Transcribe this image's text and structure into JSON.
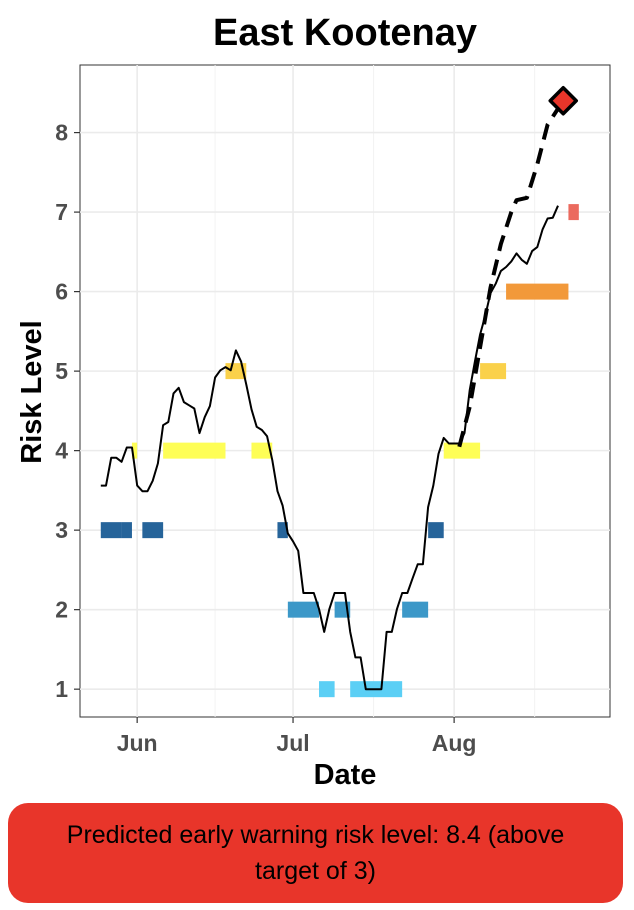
{
  "banner": {
    "text": "Predicted early warning risk level: 8.4 (above target of 3)",
    "color": "#e8352a"
  },
  "chart_data": {
    "type": "line",
    "title": "East Kootenay",
    "xlabel": "Date",
    "ylabel": "Risk Level",
    "xlim": [
      "2024-05-21",
      "2024-08-31"
    ],
    "ylim": [
      0.65,
      8.85
    ],
    "grid": true,
    "legend": "none",
    "x_ticks": [
      {
        "label": "Jun",
        "date": "2024-06-01"
      },
      {
        "label": "Jul",
        "date": "2024-07-01"
      },
      {
        "label": "Aug",
        "date": "2024-08-01"
      }
    ],
    "y_ticks": [
      1,
      2,
      3,
      4,
      5,
      6,
      7,
      8
    ],
    "series": [
      {
        "style": "solid",
        "color": "#000000",
        "points": [
          [
            "2024-05-25",
            3.56
          ],
          [
            "2024-05-26",
            3.56
          ],
          [
            "2024-05-27",
            3.91
          ],
          [
            "2024-05-28",
            3.91
          ],
          [
            "2024-05-29",
            3.86
          ],
          [
            "2024-05-30",
            4.04
          ],
          [
            "2024-05-31",
            4.04
          ],
          [
            "2024-06-01",
            3.56
          ],
          [
            "2024-06-02",
            3.49
          ],
          [
            "2024-06-03",
            3.49
          ],
          [
            "2024-06-04",
            3.62
          ],
          [
            "2024-06-05",
            3.84
          ],
          [
            "2024-06-06",
            4.32
          ],
          [
            "2024-06-07",
            4.36
          ],
          [
            "2024-06-08",
            4.72
          ],
          [
            "2024-06-09",
            4.79
          ],
          [
            "2024-06-10",
            4.61
          ],
          [
            "2024-06-11",
            4.57
          ],
          [
            "2024-06-12",
            4.53
          ],
          [
            "2024-06-13",
            4.22
          ],
          [
            "2024-06-14",
            4.42
          ],
          [
            "2024-06-15",
            4.56
          ],
          [
            "2024-06-16",
            4.92
          ],
          [
            "2024-06-17",
            5.01
          ],
          [
            "2024-06-18",
            5.05
          ],
          [
            "2024-06-19",
            5.01
          ],
          [
            "2024-06-20",
            5.26
          ],
          [
            "2024-06-21",
            5.12
          ],
          [
            "2024-06-22",
            4.83
          ],
          [
            "2024-06-23",
            4.52
          ],
          [
            "2024-06-24",
            4.3
          ],
          [
            "2024-06-25",
            4.26
          ],
          [
            "2024-06-26",
            4.18
          ],
          [
            "2024-06-27",
            3.88
          ],
          [
            "2024-06-28",
            3.49
          ],
          [
            "2024-06-29",
            3.31
          ],
          [
            "2024-06-30",
            2.96
          ],
          [
            "2024-07-01",
            2.86
          ],
          [
            "2024-07-02",
            2.74
          ],
          [
            "2024-07-03",
            2.21
          ],
          [
            "2024-07-04",
            2.21
          ],
          [
            "2024-07-05",
            2.21
          ],
          [
            "2024-07-06",
            2.01
          ],
          [
            "2024-07-07",
            1.72
          ],
          [
            "2024-07-08",
            2.01
          ],
          [
            "2024-07-09",
            2.21
          ],
          [
            "2024-07-10",
            2.21
          ],
          [
            "2024-07-11",
            2.21
          ],
          [
            "2024-07-12",
            1.72
          ],
          [
            "2024-07-13",
            1.4
          ],
          [
            "2024-07-14",
            1.4
          ],
          [
            "2024-07-15",
            1.0
          ],
          [
            "2024-07-16",
            1.0
          ],
          [
            "2024-07-17",
            1.0
          ],
          [
            "2024-07-18",
            1.0
          ],
          [
            "2024-07-19",
            1.72
          ],
          [
            "2024-07-20",
            1.72
          ],
          [
            "2024-07-21",
            2.01
          ],
          [
            "2024-07-22",
            2.21
          ],
          [
            "2024-07-23",
            2.21
          ],
          [
            "2024-07-24",
            2.39
          ],
          [
            "2024-07-25",
            2.57
          ],
          [
            "2024-07-26",
            2.57
          ],
          [
            "2024-07-27",
            3.29
          ],
          [
            "2024-07-28",
            3.56
          ],
          [
            "2024-07-29",
            3.96
          ],
          [
            "2024-07-30",
            4.16
          ],
          [
            "2024-07-31",
            4.09
          ],
          [
            "2024-08-01",
            4.09
          ],
          [
            "2024-08-02",
            4.09
          ],
          [
            "2024-08-03",
            4.22
          ],
          [
            "2024-08-04",
            4.76
          ],
          [
            "2024-08-05",
            5.12
          ],
          [
            "2024-08-06",
            5.46
          ],
          [
            "2024-08-07",
            5.7
          ],
          [
            "2024-08-08",
            5.98
          ],
          [
            "2024-08-09",
            6.1
          ],
          [
            "2024-08-10",
            6.26
          ],
          [
            "2024-08-11",
            6.31
          ],
          [
            "2024-08-12",
            6.38
          ],
          [
            "2024-08-13",
            6.48
          ],
          [
            "2024-08-14",
            6.4
          ],
          [
            "2024-08-15",
            6.35
          ],
          [
            "2024-08-16",
            6.51
          ],
          [
            "2024-08-17",
            6.56
          ],
          [
            "2024-08-18",
            6.78
          ],
          [
            "2024-08-19",
            6.92
          ],
          [
            "2024-08-20",
            6.93
          ],
          [
            "2024-08-21",
            7.08
          ]
        ]
      },
      {
        "style": "dashed",
        "color": "#000000",
        "points": [
          [
            "2024-08-02",
            4.05
          ],
          [
            "2024-08-04",
            4.55
          ],
          [
            "2024-08-06",
            5.3
          ],
          [
            "2024-08-08",
            6.05
          ],
          [
            "2024-08-10",
            6.6
          ],
          [
            "2024-08-12",
            7.0
          ],
          [
            "2024-08-13",
            7.15
          ],
          [
            "2024-08-15",
            7.18
          ],
          [
            "2024-08-17",
            7.6
          ],
          [
            "2024-08-19",
            8.1
          ],
          [
            "2024-08-21",
            8.3
          ],
          [
            "2024-08-22",
            8.42
          ]
        ]
      }
    ],
    "predicted_point": {
      "date": "2024-08-22",
      "value": 8.4,
      "color": "#e8352a",
      "shape": "diamond"
    },
    "risk_bars": [
      {
        "start": "2024-05-25",
        "end": "2024-05-29",
        "level": 3,
        "color": "#26649a"
      },
      {
        "start": "2024-05-29",
        "end": "2024-05-31",
        "level": 3,
        "color": "#26649a"
      },
      {
        "start": "2024-05-31",
        "end": "2024-06-01",
        "level": 4,
        "color": "#fefe56"
      },
      {
        "start": "2024-06-02",
        "end": "2024-06-06",
        "level": 3,
        "color": "#26649a"
      },
      {
        "start": "2024-06-06",
        "end": "2024-06-18",
        "level": 4,
        "color": "#fefe56"
      },
      {
        "start": "2024-06-18",
        "end": "2024-06-22",
        "level": 5,
        "color": "#fad14a"
      },
      {
        "start": "2024-06-23",
        "end": "2024-06-27",
        "level": 4,
        "color": "#fefe56"
      },
      {
        "start": "2024-06-28",
        "end": "2024-06-30",
        "level": 3,
        "color": "#26649a"
      },
      {
        "start": "2024-06-30",
        "end": "2024-07-06",
        "level": 2,
        "color": "#3c98c8"
      },
      {
        "start": "2024-07-06",
        "end": "2024-07-09",
        "level": 1,
        "color": "#5bcff5"
      },
      {
        "start": "2024-07-09",
        "end": "2024-07-12",
        "level": 2,
        "color": "#3c98c8"
      },
      {
        "start": "2024-07-12",
        "end": "2024-07-22",
        "level": 1,
        "color": "#5bcff5"
      },
      {
        "start": "2024-07-22",
        "end": "2024-07-27",
        "level": 2,
        "color": "#3c98c8"
      },
      {
        "start": "2024-07-27",
        "end": "2024-07-30",
        "level": 3,
        "color": "#26649a"
      },
      {
        "start": "2024-07-30",
        "end": "2024-08-06",
        "level": 4,
        "color": "#fefe56"
      },
      {
        "start": "2024-08-06",
        "end": "2024-08-11",
        "level": 5,
        "color": "#fad14a"
      },
      {
        "start": "2024-08-11",
        "end": "2024-08-23",
        "level": 6,
        "color": "#f2993a"
      },
      {
        "start": "2024-08-23",
        "end": "2024-08-25",
        "level": 7,
        "color": "#eb6a5e"
      }
    ]
  }
}
